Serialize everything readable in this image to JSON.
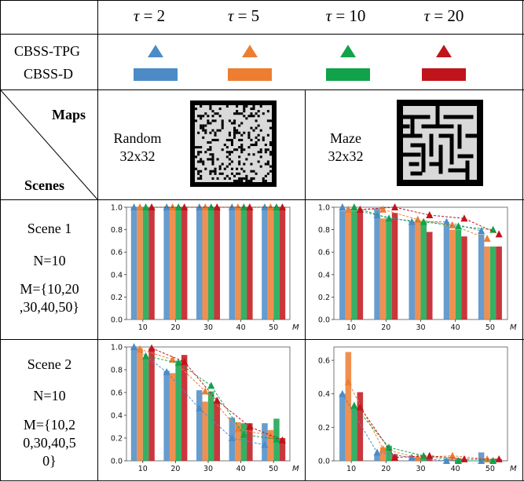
{
  "header": {
    "taus": [
      {
        "sym": "τ",
        "rest": " = 2"
      },
      {
        "sym": "τ",
        "rest": " = 5"
      },
      {
        "sym": "τ",
        "rest": " = 10"
      },
      {
        "sym": "τ",
        "rest": " = 20"
      }
    ]
  },
  "legend": {
    "row1_label": "CBSS-TPG",
    "row2_label": "CBSS-D",
    "colors": [
      "#4c8bc6",
      "#ed7d31",
      "#10a34a",
      "#c0141b"
    ]
  },
  "maps_row": {
    "maps_label": "Maps",
    "scenes_label": "Scenes",
    "map1": {
      "name": "Random",
      "size": "32x32"
    },
    "map2": {
      "name": "Maze",
      "size": "32x32"
    }
  },
  "scenes": [
    {
      "title": "Scene 1",
      "n": "N=10",
      "m_lines": [
        "M={10,20",
        ",30,40,50}"
      ]
    },
    {
      "title": "Scene 2",
      "n": "N=10",
      "m_lines": [
        "M={10,2",
        "0,30,40,5",
        "0}"
      ]
    }
  ],
  "chart_data": [
    {
      "type": "bar",
      "id": "scene1-random",
      "categories": [
        "10",
        "20",
        "30",
        "40",
        "50"
      ],
      "xlabel": "M",
      "ylim": [
        0,
        1.0
      ],
      "yticks": [
        "0.0",
        "0.2",
        "0.4",
        "0.6",
        "0.8",
        "1.0"
      ],
      "bars": [
        [
          1,
          1,
          1,
          1
        ],
        [
          1,
          1,
          1,
          1
        ],
        [
          1,
          1,
          1,
          1
        ],
        [
          1,
          1,
          1,
          1
        ],
        [
          1,
          1,
          1,
          1
        ]
      ],
      "triangles": [
        [
          1,
          1,
          1,
          1
        ],
        [
          1,
          1,
          1,
          1
        ],
        [
          1,
          1,
          1,
          1
        ],
        [
          1,
          1,
          1,
          1
        ],
        [
          1,
          1,
          1,
          1
        ]
      ]
    },
    {
      "type": "bar",
      "id": "scene1-maze",
      "categories": [
        "10",
        "20",
        "30",
        "40",
        "50"
      ],
      "xlabel": "M",
      "ylim": [
        0,
        1.0
      ],
      "yticks": [
        "0.0",
        "0.2",
        "0.4",
        "0.6",
        "0.8",
        "1.0"
      ],
      "bars": [
        [
          0.97,
          0.97,
          0.97,
          0.96
        ],
        [
          0.99,
          0.9,
          0.9,
          0.95
        ],
        [
          0.87,
          0.87,
          0.87,
          0.78
        ],
        [
          0.84,
          0.8,
          0.8,
          0.74
        ],
        [
          0.76,
          0.65,
          0.65,
          0.65
        ]
      ],
      "triangles": [
        [
          1.0,
          0.98,
          1.0,
          0.98
        ],
        [
          0.93,
          0.98,
          0.9,
          1.0
        ],
        [
          0.87,
          0.89,
          0.87,
          0.93
        ],
        [
          0.87,
          0.84,
          0.83,
          0.9
        ],
        [
          0.79,
          0.72,
          0.8,
          0.76
        ]
      ]
    },
    {
      "type": "bar",
      "id": "scene2-random",
      "categories": [
        "10",
        "20",
        "30",
        "40",
        "50"
      ],
      "xlabel": "M",
      "ylim": [
        0,
        1.0
      ],
      "yticks": [
        "0.0",
        "0.2",
        "0.4",
        "0.6",
        "0.8",
        "1.0"
      ],
      "bars": [
        [
          1.0,
          0.99,
          0.9,
          0.99
        ],
        [
          0.79,
          0.77,
          0.88,
          0.93
        ],
        [
          0.62,
          0.52,
          0.61,
          0.52
        ],
        [
          0.38,
          0.34,
          0.33,
          0.33
        ],
        [
          0.33,
          0.27,
          0.37,
          0.2
        ]
      ],
      "triangles": [
        [
          1.0,
          0.98,
          0.92,
          0.99
        ],
        [
          0.78,
          0.89,
          0.86,
          0.87
        ],
        [
          0.46,
          0.61,
          0.66,
          0.53
        ],
        [
          0.2,
          0.28,
          0.23,
          0.3
        ],
        [
          0.14,
          0.22,
          0.19,
          0.18
        ]
      ]
    },
    {
      "type": "bar",
      "id": "scene2-maze",
      "categories": [
        "10",
        "20",
        "30",
        "40",
        "50"
      ],
      "xlabel": "M",
      "ylim": [
        0,
        0.68
      ],
      "yticks": [
        "0.0",
        "0.2",
        "0.4",
        "0.6"
      ],
      "bars": [
        [
          0.4,
          0.65,
          0.32,
          0.41
        ],
        [
          0.04,
          0.08,
          0.09,
          0.04
        ],
        [
          0.02,
          0.02,
          0.02,
          0.02
        ],
        [
          0.01,
          0.01,
          0.01,
          0.01
        ],
        [
          0.05,
          0.01,
          0.01,
          0.01
        ]
      ],
      "triangles": [
        [
          0.4,
          0.47,
          0.33,
          0.32
        ],
        [
          0.05,
          0.07,
          0.08,
          0.02
        ],
        [
          0.02,
          0.02,
          0.03,
          0.03
        ],
        [
          0.0,
          0.03,
          0.0,
          0.01
        ],
        [
          0.0,
          0.01,
          0.0,
          0.01
        ]
      ]
    }
  ]
}
